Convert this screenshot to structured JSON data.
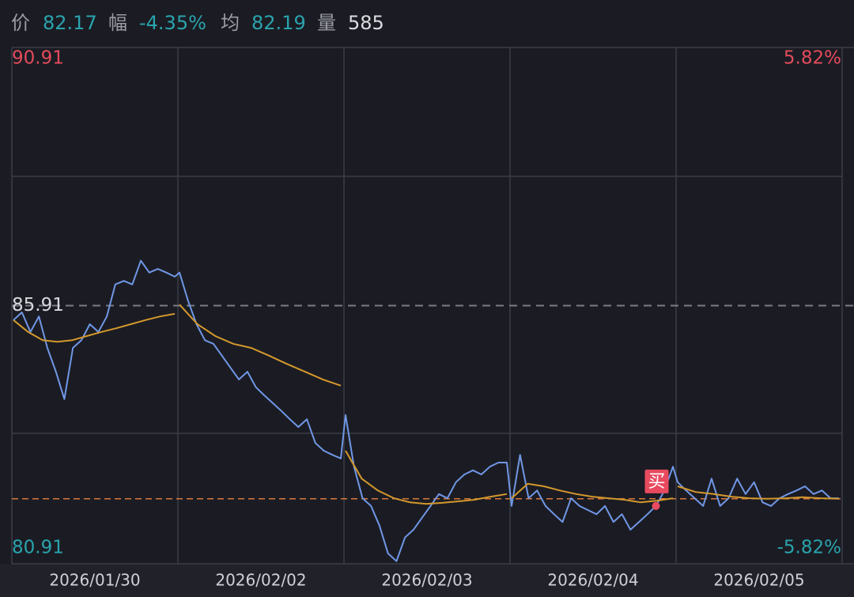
{
  "header": {
    "price_label": "价",
    "price": 82.17,
    "change_label": "幅",
    "change": "-4.35%",
    "avg_label": "均",
    "avg": 82.19,
    "volume_label": "量",
    "volume": 585
  },
  "chart_data": {
    "type": "line",
    "categories": [
      "2026/01/30",
      "2026/02/02",
      "2026/02/03",
      "2026/02/04",
      "2026/02/05"
    ],
    "ylim": [
      80.91,
      90.91
    ],
    "yticks": [
      {
        "value": 80.91,
        "label": "80.91"
      },
      {
        "value": 85.91,
        "label": "85.91"
      },
      {
        "value": 90.91,
        "label": "90.91"
      }
    ],
    "y2lim": [
      -5.82,
      5.82
    ],
    "y2ticks": [
      {
        "value": -5.82,
        "label": "-5.82%"
      },
      {
        "value": 5.82,
        "label": "5.82%"
      }
    ],
    "price_color": "#7097e6",
    "avg_color": "#d4982c",
    "price_line_color": "#d9773c",
    "series": [
      {
        "color": "#7097e6",
        "values": [
          [
            85.63,
            85.78,
            85.4,
            85.7,
            85.09,
            84.63,
            84.1,
            85.09,
            85.24,
            85.55,
            85.4,
            85.7,
            86.32,
            86.39,
            86.32,
            86.78,
            86.55,
            86.62,
            86.55,
            86.47
          ],
          [
            86.55,
            86.01,
            85.55,
            85.24,
            85.17,
            84.94,
            84.71,
            84.48,
            84.63,
            84.33,
            84.17,
            84.02,
            83.87,
            83.71,
            83.56,
            83.71,
            83.25,
            83.1,
            83.02,
            82.95
          ],
          [
            83.79,
            82.79,
            82.18,
            82.03,
            81.65,
            81.11,
            80.96,
            81.42,
            81.57,
            81.8,
            82.03,
            82.26,
            82.18,
            82.49,
            82.64,
            82.72,
            82.64,
            82.79,
            82.87,
            82.87
          ],
          [
            82.03,
            83.02,
            82.18,
            82.33,
            82.03,
            81.87,
            81.72,
            82.18,
            82.03,
            81.95,
            81.87,
            82.03,
            81.72,
            81.87,
            81.57,
            81.72,
            81.87,
            82.03,
            82.33,
            82.79
          ],
          [
            82.49,
            82.33,
            82.18,
            82.03,
            82.56,
            82.03,
            82.18,
            82.56,
            82.26,
            82.49,
            82.1,
            82.03,
            82.18,
            82.26,
            82.33,
            82.41,
            82.26,
            82.33,
            82.18,
            82.18
          ]
        ]
      },
      {
        "color": "#d4982c",
        "values": [
          [
            85.63,
            85.4,
            85.24,
            85.21,
            85.24,
            85.32,
            85.4,
            85.47,
            85.55,
            85.63,
            85.7,
            85.75
          ],
          [
            85.93,
            85.55,
            85.32,
            85.17,
            85.09,
            84.94,
            84.78,
            84.63,
            84.48,
            84.36
          ],
          [
            83.1,
            82.56,
            82.33,
            82.18,
            82.1,
            82.07,
            82.09,
            82.12,
            82.15,
            82.21,
            82.26
          ],
          [
            82.18,
            82.46,
            82.41,
            82.33,
            82.26,
            82.21,
            82.18,
            82.15,
            82.1,
            82.13,
            82.18
          ],
          [
            82.41,
            82.3,
            82.26,
            82.21,
            82.18,
            82.17,
            82.18,
            82.2,
            82.18,
            82.17
          ]
        ]
      }
    ],
    "marker": "买"
  }
}
